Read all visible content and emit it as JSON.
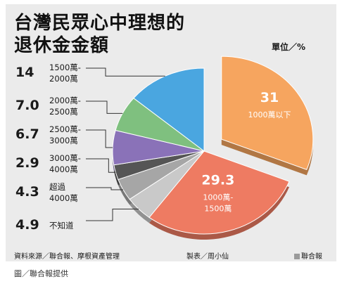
{
  "title_line1": "台灣民眾心中理想的",
  "title_line2": "退休金金額",
  "unit": "單位／%",
  "source": "資料來源／聯合報、摩根資產管理",
  "credit": "製表／周小仙",
  "logo": "聯合報",
  "caption": "圖／聯合報提供",
  "chart_data": {
    "type": "pie",
    "title": "台灣民眾心中理想的退休金金額",
    "unit": "單位／%",
    "slices": [
      {
        "label": "1000萬以下",
        "value": 31,
        "display": "31",
        "color": "#f6a55f"
      },
      {
        "label": "1000萬-1500萬",
        "value": 29.3,
        "display": "29.3",
        "color": "#ee7b62"
      },
      {
        "label": "不知道",
        "value": 4.9,
        "display": "4.9",
        "color": "#c9c9c9"
      },
      {
        "label": "超過4000萬",
        "value": 4.3,
        "display": "4.3",
        "color": "#a6a6a6"
      },
      {
        "label": "3000萬-4000萬",
        "value": 2.9,
        "display": "2.9",
        "color": "#555555"
      },
      {
        "label": "2500萬-3000萬",
        "value": 6.7,
        "display": "6.7",
        "color": "#8a72b8"
      },
      {
        "label": "2000萬-2500萬",
        "value": 7.0,
        "display": "7.0",
        "color": "#7fc07f"
      },
      {
        "label": "1500萬-2000萬",
        "value": 14,
        "display": "14",
        "color": "#4aa6e0"
      }
    ],
    "legend": [
      {
        "value": "14",
        "line1": "1500萬-",
        "line2": "2000萬"
      },
      {
        "value": "7.0",
        "line1": "2000萬-",
        "line2": "2500萬"
      },
      {
        "value": "6.7",
        "line1": "2500萬-",
        "line2": "3000萬"
      },
      {
        "value": "2.9",
        "line1": "3000萬-",
        "line2": "4000萬"
      },
      {
        "value": "4.3",
        "line1": "超過",
        "line2": "4000萬"
      },
      {
        "value": "4.9",
        "line1": "不知道",
        "line2": ""
      }
    ],
    "in_slice_labels": [
      {
        "value": "31",
        "line1": "1000萬以下",
        "line2": ""
      },
      {
        "value": "29.3",
        "line1": "1000萬-",
        "line2": "1500萬"
      }
    ]
  }
}
